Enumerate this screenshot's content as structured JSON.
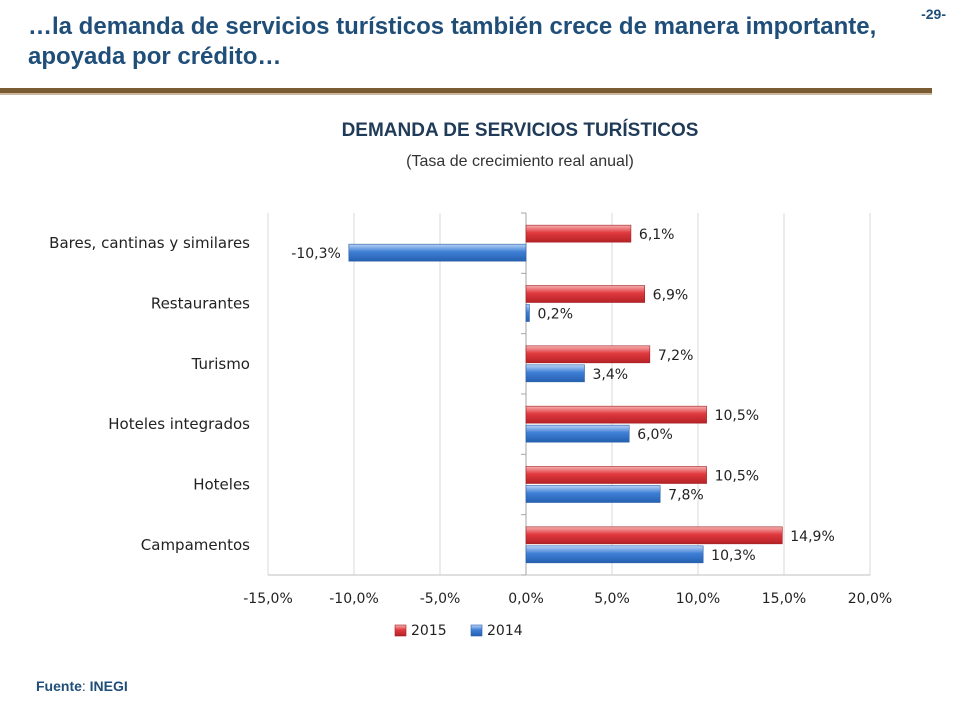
{
  "header": {
    "title": "…la demanda de servicios turísticos también crece de manera importante, apoyada por crédito…",
    "page_number": "-29-"
  },
  "footer": {
    "source_label": "Fuente",
    "source_separator": ": ",
    "source_value": "INEGI"
  },
  "colors": {
    "series_2015": "#e0393e",
    "series_2014": "#3e7fd6",
    "title_color": "#1f4e79",
    "rule_color": "#7a5c33"
  },
  "chart_data": {
    "type": "bar",
    "orientation": "horizontal",
    "title": "DEMANDA DE SERVICIOS TURÍSTICOS",
    "subtitle": "(Tasa de crecimiento real anual)",
    "categories": [
      "Bares, cantinas y similares",
      "Restaurantes",
      "Turismo",
      "Hoteles integrados",
      "Hoteles",
      "Campamentos"
    ],
    "series": [
      {
        "name": "2015",
        "values": [
          6.1,
          6.9,
          7.2,
          10.5,
          10.5,
          14.9
        ],
        "labels": [
          "6,1%",
          "6,9%",
          "7,2%",
          "10,5%",
          "10,5%",
          "14,9%"
        ]
      },
      {
        "name": "2014",
        "values": [
          -10.3,
          0.2,
          3.4,
          6.0,
          7.8,
          10.3
        ],
        "labels": [
          "-10,3%",
          "0,2%",
          "3,4%",
          "6,0%",
          "7,8%",
          "10,3%"
        ]
      }
    ],
    "xlim": [
      -15,
      20
    ],
    "xticks": [
      -15,
      -10,
      -5,
      0,
      5,
      10,
      15,
      20
    ],
    "xtick_labels": [
      "-15,0%",
      "-10,0%",
      "-5,0%",
      "0,0%",
      "5,0%",
      "10,0%",
      "15,0%",
      "20,0%"
    ],
    "grid": "vertical",
    "legend": "bottom",
    "legend_order": [
      "2015",
      "2014"
    ]
  }
}
